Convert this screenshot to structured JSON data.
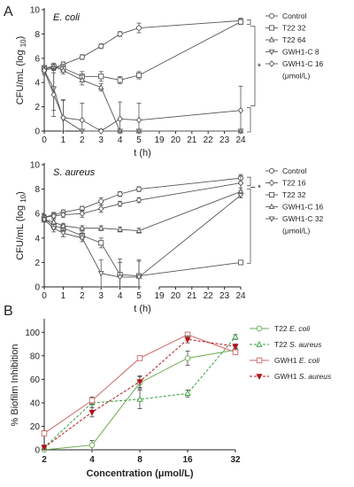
{
  "panels": {
    "a_letter": "A",
    "b_letter": "B"
  },
  "chart_data": [
    {
      "type": "line",
      "panel": "A",
      "organism": "E. coli",
      "xlabel": "t (h)",
      "ylabel": "CFU/mL (log",
      "ylabel_sub": "10",
      "ylabel_close": ")",
      "ylim": [
        0,
        10
      ],
      "yticks": [
        0,
        2,
        4,
        6,
        8,
        10
      ],
      "xticks_left": [
        0,
        1,
        2,
        3,
        4,
        5
      ],
      "xticks_right": [
        19,
        20,
        21,
        22,
        23,
        24
      ],
      "x": [
        0,
        0.5,
        1,
        2,
        3,
        4,
        5,
        24
      ],
      "series": [
        {
          "name": "Control",
          "marker": "circle",
          "values": [
            5.0,
            5.2,
            5.5,
            6.1,
            7.0,
            8.0,
            8.5,
            9.1
          ],
          "err": [
            0.2,
            0.2,
            0.2,
            0.2,
            0.2,
            0.2,
            0.4,
            0.2
          ]
        },
        {
          "name": "T22 32",
          "marker": "square",
          "values": [
            5.2,
            5.3,
            5.2,
            4.5,
            4.5,
            4.2,
            4.6,
            9.0
          ],
          "err": [
            0.2,
            0.2,
            0.3,
            0.4,
            0.4,
            0.3,
            0.3,
            0.2
          ]
        },
        {
          "name": "T22 64",
          "marker": "triangle-up",
          "values": [
            5.1,
            5.3,
            5.0,
            4.2,
            3.6,
            0.0,
            0.0,
            0.0
          ],
          "err": [
            0.2,
            0.3,
            0.3,
            0.4,
            0.3,
            0.0,
            0.0,
            0.0
          ]
        },
        {
          "name": "GWH1-C 8",
          "marker": "triangle-down",
          "values": [
            5.0,
            3.5,
            1.0,
            0.0,
            0.0,
            0.0,
            0.0,
            0.0
          ],
          "err": [
            0.3,
            1.8,
            1.5,
            0.0,
            0.0,
            0.0,
            0.0,
            0.0
          ]
        },
        {
          "name": "GWH1-C 16",
          "marker": "diamond",
          "values": [
            5.0,
            3.0,
            1.1,
            0.9,
            0.0,
            1.0,
            0.9,
            1.7
          ],
          "err": [
            0.4,
            1.8,
            1.5,
            1.4,
            0.0,
            1.4,
            1.4,
            2.0
          ]
        }
      ],
      "unit_note": "(μmol/L)",
      "annotation": "*"
    },
    {
      "type": "line",
      "panel": "A",
      "organism": "S. aureus",
      "xlabel": "t (h)",
      "ylabel": "CFU/mL (log",
      "ylabel_sub": "10",
      "ylabel_close": ")",
      "ylim": [
        0,
        10
      ],
      "yticks": [
        0,
        2,
        4,
        6,
        8,
        10
      ],
      "xticks_left": [
        0,
        1,
        2,
        3,
        4,
        5
      ],
      "xticks_right": [
        19,
        20,
        21,
        22,
        23,
        24
      ],
      "x": [
        0,
        0.5,
        1,
        2,
        3,
        4,
        5,
        24
      ],
      "series": [
        {
          "name": "Control",
          "marker": "circle",
          "values": [
            5.7,
            5.9,
            6.1,
            6.4,
            7.0,
            7.6,
            8.0,
            8.9
          ],
          "err": [
            0.2,
            0.2,
            0.2,
            0.2,
            0.3,
            0.2,
            0.2,
            0.3
          ]
        },
        {
          "name": "T22 16",
          "marker": "diamond",
          "values": [
            5.7,
            5.8,
            5.9,
            6.0,
            6.4,
            6.8,
            7.1,
            8.5
          ],
          "err": [
            0.2,
            0.2,
            0.2,
            0.3,
            0.3,
            0.2,
            0.2,
            0.6
          ]
        },
        {
          "name": "T22 32",
          "marker": "square",
          "values": [
            5.6,
            5.0,
            4.8,
            4.2,
            3.6,
            1.0,
            0.9,
            2.0
          ],
          "err": [
            0.2,
            0.3,
            0.3,
            0.3,
            0.4,
            1.3,
            1.3,
            0.1
          ]
        },
        {
          "name": "GWH1-C 16",
          "marker": "triangle-up",
          "values": [
            5.5,
            5.3,
            5.0,
            4.8,
            4.8,
            4.7,
            4.6,
            7.8
          ],
          "err": [
            0.2,
            0.2,
            0.2,
            0.2,
            0.2,
            0.2,
            0.2,
            0.3
          ]
        },
        {
          "name": "GWH1-C 32",
          "marker": "triangle-down",
          "values": [
            5.5,
            4.8,
            4.4,
            4.0,
            1.1,
            0.8,
            0.8,
            7.5
          ],
          "err": [
            0.2,
            0.3,
            0.3,
            0.3,
            1.1,
            1.2,
            1.3,
            0.2
          ]
        }
      ],
      "unit_note": "(μmol/L)",
      "annotation": "*"
    },
    {
      "type": "line",
      "panel": "B",
      "xlabel": "Concentration (μmol/L)",
      "ylabel": "% Biofilm Inhibition",
      "ylim": [
        0,
        110
      ],
      "yticks": [
        0,
        20,
        40,
        60,
        80,
        100
      ],
      "x_scale": "log2",
      "x": [
        2,
        4,
        8,
        16,
        32
      ],
      "xticks": [
        2,
        4,
        8,
        16,
        32
      ],
      "series": [
        {
          "name": "T22 ",
          "name_italic": "E. coli",
          "color": "#6aa84f",
          "dash": "solid",
          "marker": "circle",
          "values": [
            0,
            4,
            57,
            78,
            85
          ],
          "err": [
            2,
            4,
            5,
            6,
            3
          ]
        },
        {
          "name": "T22 ",
          "name_italic": "S. aureus",
          "color": "#2e9e3a",
          "dash": "dashed",
          "marker": "triangle-up",
          "values": [
            2,
            40,
            43,
            48,
            96
          ],
          "err": [
            2,
            4,
            8,
            3,
            2
          ]
        },
        {
          "name": "GWH1 ",
          "name_italic": "E. coli",
          "color": "#cc6666",
          "dash": "solid",
          "marker": "square",
          "values": [
            14,
            42,
            78,
            98,
            83
          ],
          "err": [
            2,
            3,
            2,
            2,
            2
          ]
        },
        {
          "name": "GWH1 ",
          "name_italic": "S. aureus",
          "color": "#b3131b",
          "dash": "dashed",
          "marker": "triangle-down-filled",
          "values": [
            2,
            32,
            58,
            94,
            88
          ],
          "err": [
            2,
            4,
            5,
            3,
            2
          ]
        }
      ]
    }
  ]
}
